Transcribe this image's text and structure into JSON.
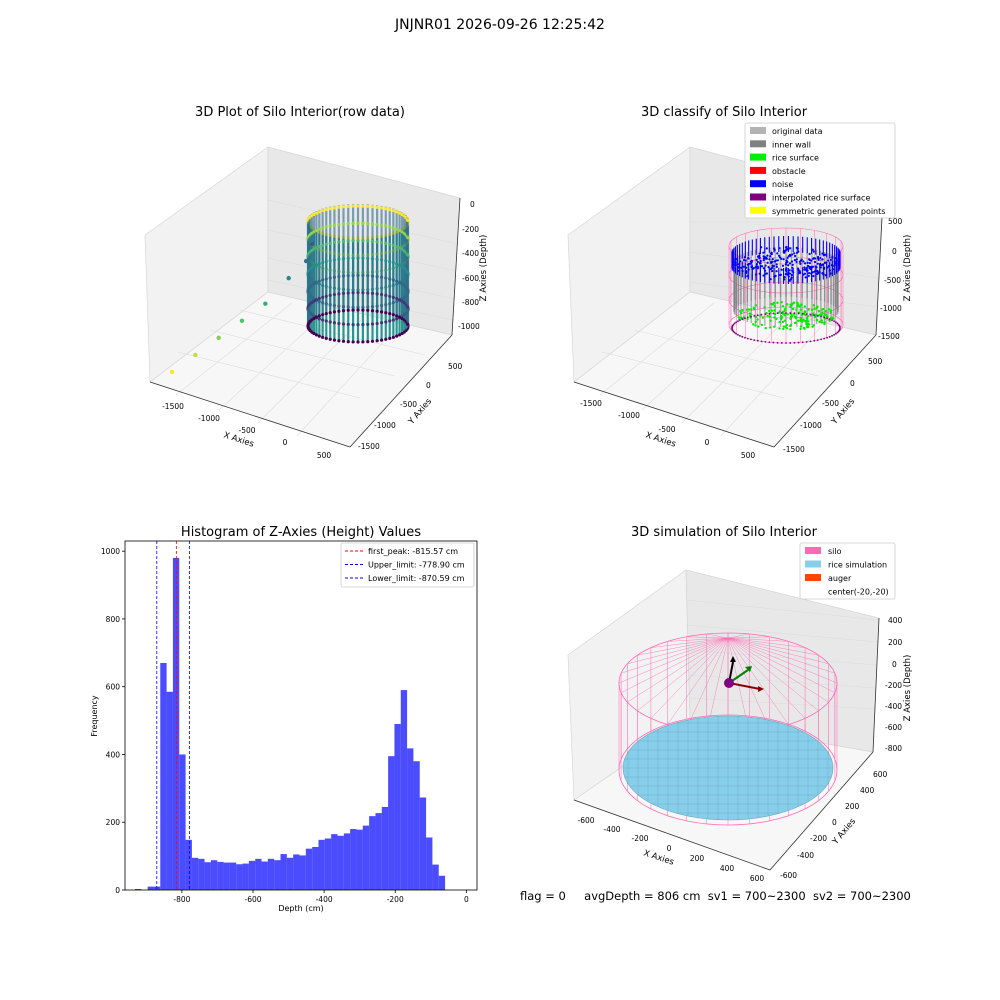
{
  "figure": {
    "suptitle": "JNJNR01 2026-09-26 12:25:42",
    "status": {
      "flag": "flag = 0",
      "avg_depth": "avgDepth = 806 cm",
      "sv1": "sv1 = 700~2300",
      "sv2": "sv2 = 700~2300"
    }
  },
  "chart_data": [
    {
      "type": "scatter",
      "projection": "3d",
      "title": "3D Plot of Silo Interior(row data)",
      "xlabel": "X Axies",
      "ylabel": "Y Axies",
      "zlabel": "Z Axies (Depth)",
      "x_ticks": [
        "-1500",
        "-1000",
        "-500",
        "0",
        "500"
      ],
      "y_ticks": [
        "500",
        "0",
        "-500",
        "-1000",
        "-1500"
      ],
      "z_ticks": [
        "0",
        "-200",
        "-400",
        "-600",
        "-800",
        "-1000"
      ],
      "colormap": "viridis",
      "series": [
        {
          "shape": "cylinder",
          "center": [
            0,
            0
          ],
          "radius": 500,
          "z_range": [
            -1100,
            -50
          ]
        }
      ],
      "outlier_points": [
        {
          "x": -1550,
          "y": 550,
          "z": -1100
        },
        {
          "x": -1350,
          "y": 350,
          "z": -1000
        },
        {
          "x": -1150,
          "y": 200,
          "z": -900
        },
        {
          "x": -950,
          "y": 100,
          "z": -800
        },
        {
          "x": -750,
          "y": 0,
          "z": -700
        },
        {
          "x": -550,
          "y": -100,
          "z": -550
        },
        {
          "x": -400,
          "y": -200,
          "z": -450
        },
        {
          "x": -350,
          "y": -250,
          "z": -350
        }
      ]
    },
    {
      "type": "scatter",
      "projection": "3d",
      "title": "3D classify of Silo Interior",
      "xlabel": "X Axies",
      "ylabel": "Y Axies",
      "zlabel": "Z Axies (Depth)",
      "x_ticks": [
        "-1500",
        "-1000",
        "-500",
        "0",
        "500"
      ],
      "y_ticks": [
        "500",
        "0",
        "-500",
        "-1000",
        "-1500"
      ],
      "z_ticks": [
        "500",
        "0",
        "-500",
        "-1000",
        "-1500"
      ],
      "legend_position": "top-right",
      "legend": [
        {
          "label": "original data",
          "color": "#b3b3b3"
        },
        {
          "label": "inner wall",
          "color": "#808080"
        },
        {
          "label": "rice surface",
          "color": "#00ee00"
        },
        {
          "label": "obstacle",
          "color": "#ff0000"
        },
        {
          "label": "noise",
          "color": "#0000ff"
        },
        {
          "label": "interpolated rice surface",
          "color": "#800080"
        },
        {
          "label": "symmetric generated points",
          "color": "#ffff00"
        }
      ]
    },
    {
      "type": "bar",
      "title": "Histogram of Z-Axies (Height) Values",
      "xlabel": "Depth (cm)",
      "ylabel": "Frequency",
      "x_ticks": [
        "-800",
        "-600",
        "-400",
        "-200",
        "0"
      ],
      "y_ticks": [
        "0",
        "200",
        "400",
        "600",
        "800",
        "1000"
      ],
      "xlim": [
        -960,
        30
      ],
      "ylim": [
        0,
        1030
      ],
      "bar_color": "#0000ff",
      "bin_width": 17.8,
      "bin_start": -932,
      "values": [
        3,
        0,
        10,
        10,
        670,
        585,
        980,
        400,
        148,
        95,
        92,
        82,
        88,
        83,
        81,
        81,
        76,
        78,
        86,
        92,
        84,
        92,
        88,
        106,
        95,
        105,
        102,
        122,
        127,
        148,
        152,
        165,
        160,
        167,
        180,
        178,
        190,
        218,
        227,
        245,
        395,
        490,
        590,
        418,
        380,
        273,
        155,
        75,
        42
      ],
      "legend_position": "top-right",
      "reference_lines": [
        {
          "label": "first_peak: -815.57 cm",
          "value": -815.57,
          "color": "#ff0000"
        },
        {
          "label": "Upper_limit: -778.90 cm",
          "value": -778.9,
          "color": "#0000ff"
        },
        {
          "label": "Lower_limit: -870.59 cm",
          "value": -870.59,
          "color": "#0000ff"
        }
      ]
    },
    {
      "type": "surface",
      "projection": "3d",
      "title": "3D simulation of Silo Interior",
      "xlabel": "X Axies",
      "ylabel": "Y Axies",
      "zlabel": "Z Axies (Depth)",
      "x_ticks": [
        "-600",
        "-400",
        "-200",
        "0",
        "200",
        "400",
        "600"
      ],
      "y_ticks": [
        "600",
        "400",
        "200",
        "0",
        "-200",
        "-400",
        "-600"
      ],
      "z_ticks": [
        "400",
        "200",
        "0",
        "-200",
        "-400",
        "-600",
        "-800"
      ],
      "legend_position": "top-right",
      "legend": [
        {
          "label": "silo",
          "color": "#ff69b4"
        },
        {
          "label": "rice simulation",
          "color": "#87ceeb"
        },
        {
          "label": "auger",
          "color": "#ff4500"
        },
        {
          "label": "center(-20,-20)",
          "color": "none"
        }
      ]
    }
  ]
}
